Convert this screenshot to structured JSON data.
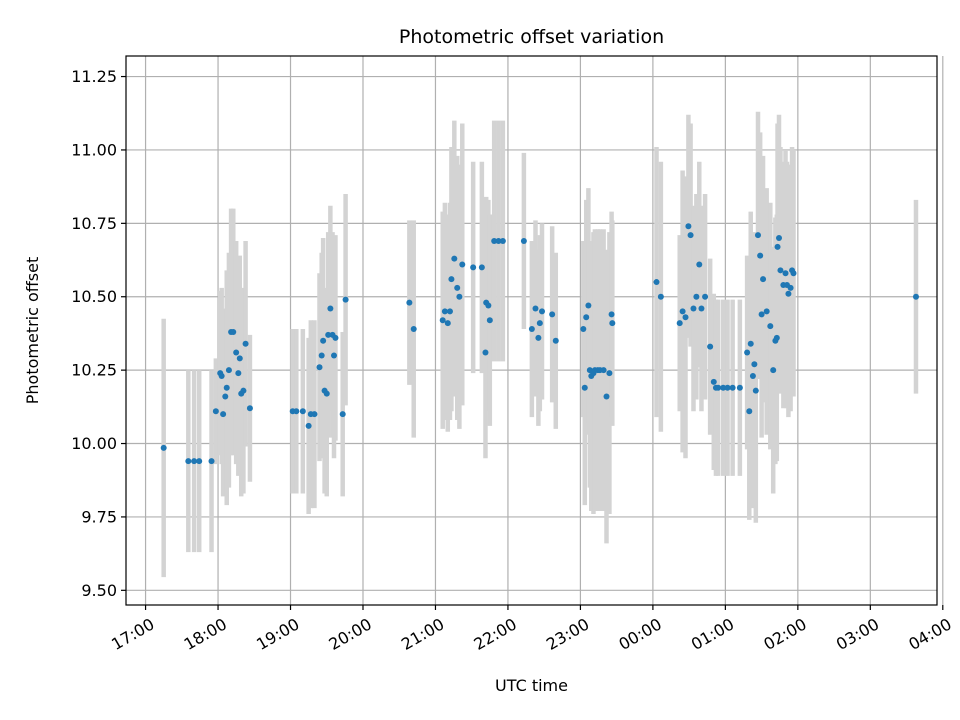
{
  "chart_data": {
    "type": "scatter",
    "title": "Photometric offset variation",
    "xlabel": "UTC time",
    "ylabel": "Photometric offset",
    "x_unit": "UTC time (hours, continuing past midnight)",
    "xlim": [
      16.73,
      27.92
    ],
    "ylim": [
      9.45,
      11.32
    ],
    "grid": true,
    "legend": "none",
    "x_ticks": [
      {
        "value": 17,
        "label": "17:00"
      },
      {
        "value": 18,
        "label": "18:00"
      },
      {
        "value": 19,
        "label": "19:00"
      },
      {
        "value": 20,
        "label": "20:00"
      },
      {
        "value": 21,
        "label": "21:00"
      },
      {
        "value": 22,
        "label": "22:00"
      },
      {
        "value": 23,
        "label": "23:00"
      },
      {
        "value": 24,
        "label": "00:00"
      },
      {
        "value": 25,
        "label": "01:00"
      },
      {
        "value": 26,
        "label": "02:00"
      },
      {
        "value": 27,
        "label": "03:00"
      },
      {
        "value": 28,
        "label": "04:00"
      }
    ],
    "y_ticks": [
      {
        "value": 9.5,
        "label": "9.50"
      },
      {
        "value": 9.75,
        "label": "9.75"
      },
      {
        "value": 10.0,
        "label": "10.00"
      },
      {
        "value": 10.25,
        "label": "10.25"
      },
      {
        "value": 10.5,
        "label": "10.50"
      },
      {
        "value": 10.75,
        "label": "10.75"
      },
      {
        "value": 11.0,
        "label": "11.00"
      },
      {
        "value": 11.25,
        "label": "11.25"
      }
    ],
    "colors": {
      "points": "#1f77b4",
      "errorbars": "#d3d3d3",
      "grid": "#b0b0b0"
    },
    "series": [
      {
        "points": [
          [
            17.25,
            9.985,
            0.44
          ],
          [
            17.59,
            9.94,
            0.31
          ],
          [
            17.67,
            9.94,
            0.31
          ],
          [
            17.74,
            9.94,
            0.31
          ],
          [
            17.91,
            9.94,
            0.31
          ],
          [
            17.97,
            10.11,
            0.18
          ],
          [
            18.03,
            10.24,
            0.28
          ],
          [
            18.05,
            10.23,
            0.3
          ],
          [
            18.07,
            10.1,
            0.28
          ],
          [
            18.1,
            10.16,
            0.3
          ],
          [
            18.12,
            10.19,
            0.4
          ],
          [
            18.15,
            10.25,
            0.4
          ],
          [
            18.18,
            10.38,
            0.42
          ],
          [
            18.21,
            10.38,
            0.42
          ],
          [
            18.25,
            10.31,
            0.38
          ],
          [
            18.28,
            10.24,
            0.35
          ],
          [
            18.3,
            10.29,
            0.35
          ],
          [
            18.32,
            10.17,
            0.35
          ],
          [
            18.35,
            10.18,
            0.35
          ],
          [
            18.38,
            10.34,
            0.35
          ],
          [
            18.44,
            10.12,
            0.25
          ],
          [
            19.03,
            10.11,
            0.28
          ],
          [
            19.08,
            10.11,
            0.28
          ],
          [
            19.17,
            10.11,
            0.28
          ],
          [
            19.25,
            10.06,
            0.3
          ],
          [
            19.28,
            10.1,
            0.32
          ],
          [
            19.33,
            10.1,
            0.32
          ],
          [
            19.4,
            10.26,
            0.32
          ],
          [
            19.43,
            10.3,
            0.35
          ],
          [
            19.45,
            10.35,
            0.35
          ],
          [
            19.47,
            10.18,
            0.35
          ],
          [
            19.5,
            10.17,
            0.35
          ],
          [
            19.52,
            10.37,
            0.35
          ],
          [
            19.55,
            10.46,
            0.35
          ],
          [
            19.58,
            10.37,
            0.35
          ],
          [
            19.6,
            10.3,
            0.35
          ],
          [
            19.62,
            10.36,
            0.35
          ],
          [
            19.72,
            10.1,
            0.28
          ],
          [
            19.76,
            10.49,
            0.36
          ],
          [
            20.64,
            10.48,
            0.28
          ],
          [
            20.7,
            10.39,
            0.37
          ],
          [
            21.1,
            10.42,
            0.37
          ],
          [
            21.13,
            10.45,
            0.37
          ],
          [
            21.17,
            10.41,
            0.37
          ],
          [
            21.2,
            10.45,
            0.37
          ],
          [
            21.22,
            10.56,
            0.45
          ],
          [
            21.26,
            10.63,
            0.47
          ],
          [
            21.3,
            10.53,
            0.45
          ],
          [
            21.33,
            10.5,
            0.45
          ],
          [
            21.37,
            10.61,
            0.48
          ],
          [
            21.52,
            10.6,
            0.36
          ],
          [
            21.64,
            10.6,
            0.36
          ],
          [
            21.69,
            10.31,
            0.36
          ],
          [
            21.7,
            10.48,
            0.36
          ],
          [
            21.73,
            10.47,
            0.36
          ],
          [
            21.75,
            10.42,
            0.36
          ],
          [
            21.81,
            10.69,
            0.41
          ],
          [
            21.87,
            10.69,
            0.41
          ],
          [
            21.93,
            10.69,
            0.41
          ],
          [
            22.22,
            10.69,
            0.3
          ],
          [
            22.33,
            10.39,
            0.3
          ],
          [
            22.38,
            10.46,
            0.3
          ],
          [
            22.42,
            10.36,
            0.3
          ],
          [
            22.44,
            10.41,
            0.3
          ],
          [
            22.47,
            10.45,
            0.3
          ],
          [
            22.61,
            10.44,
            0.3
          ],
          [
            22.66,
            10.35,
            0.3
          ],
          [
            23.04,
            10.39,
            0.3
          ],
          [
            23.06,
            10.19,
            0.4
          ],
          [
            23.08,
            10.43,
            0.4
          ],
          [
            23.11,
            10.47,
            0.4
          ],
          [
            23.13,
            10.25,
            0.4
          ],
          [
            23.15,
            10.23,
            0.46
          ],
          [
            23.18,
            10.24,
            0.48
          ],
          [
            23.2,
            10.25,
            0.48
          ],
          [
            23.24,
            10.25,
            0.48
          ],
          [
            23.27,
            10.25,
            0.48
          ],
          [
            23.32,
            10.25,
            0.48
          ],
          [
            23.36,
            10.16,
            0.5
          ],
          [
            23.4,
            10.24,
            0.48
          ],
          [
            23.43,
            10.44,
            0.35
          ],
          [
            23.44,
            10.41,
            0.35
          ],
          [
            24.05,
            10.55,
            0.46
          ],
          [
            24.11,
            10.5,
            0.46
          ],
          [
            24.37,
            10.41,
            0.3
          ],
          [
            24.41,
            10.45,
            0.48
          ],
          [
            24.45,
            10.43,
            0.48
          ],
          [
            24.49,
            10.74,
            0.38
          ],
          [
            24.52,
            10.71,
            0.38
          ],
          [
            24.56,
            10.46,
            0.35
          ],
          [
            24.6,
            10.5,
            0.35
          ],
          [
            24.64,
            10.61,
            0.35
          ],
          [
            24.67,
            10.46,
            0.35
          ],
          [
            24.72,
            10.5,
            0.35
          ],
          [
            24.79,
            10.33,
            0.3
          ],
          [
            24.84,
            10.21,
            0.3
          ],
          [
            24.87,
            10.19,
            0.3
          ],
          [
            24.9,
            10.19,
            0.3
          ],
          [
            24.97,
            10.19,
            0.3
          ],
          [
            25.03,
            10.19,
            0.3
          ],
          [
            25.1,
            10.19,
            0.3
          ],
          [
            25.2,
            10.19,
            0.3
          ],
          [
            25.3,
            10.31,
            0.33
          ],
          [
            25.33,
            10.11,
            0.37
          ],
          [
            25.35,
            10.34,
            0.45
          ],
          [
            25.38,
            10.23,
            0.45
          ],
          [
            25.4,
            10.27,
            0.45
          ],
          [
            25.42,
            10.18,
            0.45
          ],
          [
            25.45,
            10.71,
            0.42
          ],
          [
            25.48,
            10.64,
            0.42
          ],
          [
            25.5,
            10.44,
            0.42
          ],
          [
            25.52,
            10.56,
            0.42
          ],
          [
            25.57,
            10.45,
            0.42
          ],
          [
            25.62,
            10.4,
            0.42
          ],
          [
            25.66,
            10.25,
            0.42
          ],
          [
            25.69,
            10.35,
            0.42
          ],
          [
            25.71,
            10.36,
            0.42
          ],
          [
            25.72,
            10.67,
            0.42
          ],
          [
            25.74,
            10.7,
            0.42
          ],
          [
            25.76,
            10.59,
            0.42
          ],
          [
            25.8,
            10.54,
            0.42
          ],
          [
            25.83,
            10.58,
            0.42
          ],
          [
            25.85,
            10.54,
            0.42
          ],
          [
            25.87,
            10.51,
            0.42
          ],
          [
            25.9,
            10.53,
            0.42
          ],
          [
            25.92,
            10.59,
            0.42
          ],
          [
            25.94,
            10.58,
            0.42
          ],
          [
            27.63,
            10.5,
            0.33
          ]
        ]
      }
    ]
  }
}
